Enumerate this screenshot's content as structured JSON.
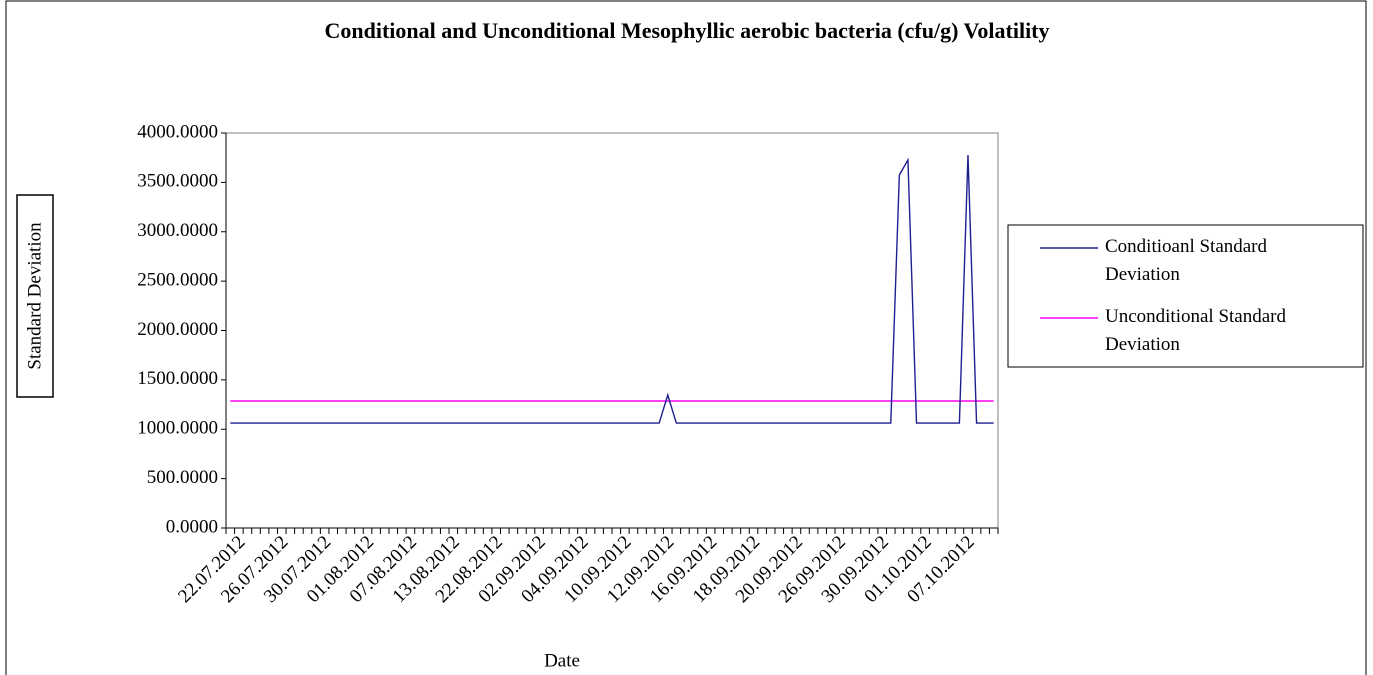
{
  "chart_data": {
    "type": "line",
    "title": "Conditional and Unconditional  Mesophyllic aerobic bacteria (cfu/g) Volatility",
    "x_label": "Date",
    "y_label": "Standard Deviation",
    "categories": [
      null,
      "22.07.2012",
      null,
      null,
      null,
      null,
      "26.07.2012",
      null,
      null,
      null,
      null,
      "30.07.2012",
      null,
      null,
      null,
      null,
      "01.08.2012",
      null,
      null,
      null,
      null,
      "07.08.2012",
      null,
      null,
      null,
      null,
      "13.08.2012",
      null,
      null,
      null,
      null,
      "22.08.2012",
      null,
      null,
      null,
      null,
      "02.09.2012",
      null,
      null,
      null,
      null,
      "04.09.2012",
      null,
      null,
      null,
      null,
      "10.09.2012",
      null,
      null,
      null,
      null,
      "12.09.2012",
      null,
      null,
      null,
      null,
      "16.09.2012",
      null,
      null,
      null,
      null,
      "18.09.2012",
      null,
      null,
      null,
      null,
      "20.09.2012",
      null,
      null,
      null,
      null,
      "26.09.2012",
      null,
      null,
      null,
      null,
      "30.09.2012",
      null,
      null,
      null,
      null,
      "01.10.2012",
      null,
      null,
      null,
      null,
      "07.10.2012",
      null,
      null,
      null
    ],
    "series": [
      {
        "name": "Conditioanl Standard Deviation",
        "color": "#1f1f8f",
        "values": [
          1063,
          1063,
          1063,
          1063,
          1063,
          1063,
          1063,
          1063,
          1063,
          1063,
          1063,
          1063,
          1063,
          1063,
          1063,
          1063,
          1063,
          1063,
          1063,
          1063,
          1063,
          1063,
          1063,
          1063,
          1063,
          1063,
          1063,
          1063,
          1063,
          1063,
          1063,
          1063,
          1063,
          1063,
          1063,
          1063,
          1063,
          1063,
          1063,
          1063,
          1063,
          1063,
          1063,
          1063,
          1063,
          1063,
          1063,
          1063,
          1063,
          1063,
          1063,
          1347,
          1063,
          1063,
          1063,
          1063,
          1063,
          1063,
          1063,
          1063,
          1063,
          1063,
          1063,
          1063,
          1063,
          1063,
          1063,
          1063,
          1063,
          1063,
          1063,
          1063,
          1063,
          1063,
          1063,
          1063,
          1063,
          1063,
          3575,
          3727,
          1063,
          1063,
          1063,
          1063,
          1063,
          1063,
          3777,
          1063,
          1063,
          1063
        ]
      },
      {
        "name": "Unconditional Standard Deviation",
        "color": "#ff00ff",
        "values": [
          1286,
          1286,
          1286,
          1286,
          1286,
          1286,
          1286,
          1286,
          1286,
          1286,
          1286,
          1286,
          1286,
          1286,
          1286,
          1286,
          1286,
          1286,
          1286,
          1286,
          1286,
          1286,
          1286,
          1286,
          1286,
          1286,
          1286,
          1286,
          1286,
          1286,
          1286,
          1286,
          1286,
          1286,
          1286,
          1286,
          1286,
          1286,
          1286,
          1286,
          1286,
          1286,
          1286,
          1286,
          1286,
          1286,
          1286,
          1286,
          1286,
          1286,
          1286,
          1286,
          1286,
          1286,
          1286,
          1286,
          1286,
          1286,
          1286,
          1286,
          1286,
          1286,
          1286,
          1286,
          1286,
          1286,
          1286,
          1286,
          1286,
          1286,
          1286,
          1286,
          1286,
          1286,
          1286,
          1286,
          1286,
          1286,
          1286,
          1286,
          1286,
          1286,
          1286,
          1286,
          1286,
          1286,
          1286,
          1286,
          1286,
          1286
        ]
      }
    ],
    "ylim": [
      0,
      4000
    ],
    "yticks": [
      {
        "value": 0,
        "label": "0.0000"
      },
      {
        "value": 500,
        "label": "500.0000"
      },
      {
        "value": 1000,
        "label": "1000.0000"
      },
      {
        "value": 1500,
        "label": "1500.0000"
      },
      {
        "value": 2000,
        "label": "2000.0000"
      },
      {
        "value": 2500,
        "label": "2500.0000"
      },
      {
        "value": 3000,
        "label": "3000.0000"
      },
      {
        "value": 3500,
        "label": "3500.0000"
      },
      {
        "value": 4000,
        "label": "4000.0000"
      }
    ],
    "grid": false,
    "legend": "right"
  }
}
